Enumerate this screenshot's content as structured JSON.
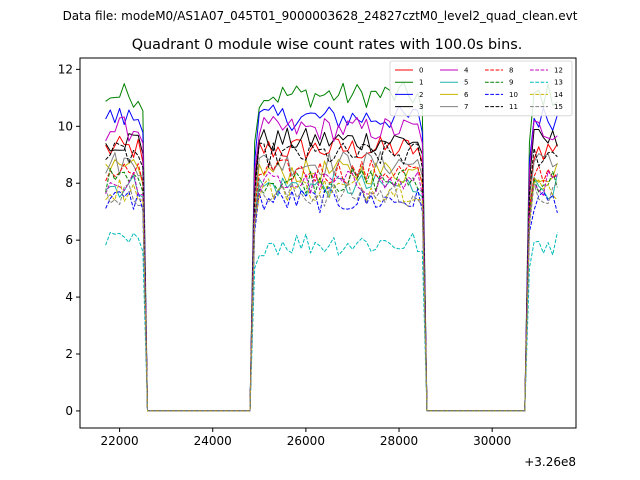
{
  "figure": {
    "suptitle": "Data file: modeM0/AS1A07_045T01_9000003628_24827cztM0_level2_quad_clean.evt"
  },
  "chart_data": {
    "type": "line",
    "title": "Quadrant 0 module wise count rates with 100.0s bins.",
    "xlabel": "",
    "ylabel": "",
    "x_offset_label": "+3.26e8",
    "x_offset": 326000000,
    "xlim": [
      21150,
      31800
    ],
    "ylim": [
      -0.6,
      12.4
    ],
    "x_ticks": [
      22000,
      24000,
      26000,
      28000,
      30000
    ],
    "y_ticks": [
      0,
      2,
      4,
      6,
      8,
      10,
      12
    ],
    "grid": false,
    "legend": {
      "placement": "top-right",
      "columns": 4
    },
    "series": [
      {
        "name": "0",
        "color": "#ff0000",
        "dash": "solid",
        "level": 9.2
      },
      {
        "name": "1",
        "color": "#008000",
        "dash": "solid",
        "level": 11.1
      },
      {
        "name": "2",
        "color": "#0000ff",
        "dash": "solid",
        "level": 10.3
      },
      {
        "name": "3",
        "color": "#000000",
        "dash": "solid",
        "level": 9.5
      },
      {
        "name": "4",
        "color": "#c000c0",
        "dash": "solid",
        "level": 9.9
      },
      {
        "name": "5",
        "color": "#20b2aa",
        "dash": "solid",
        "level": 7.9
      },
      {
        "name": "6",
        "color": "#c8b400",
        "dash": "solid",
        "level": 8.4
      },
      {
        "name": "7",
        "color": "#808080",
        "dash": "solid",
        "level": 8.7
      },
      {
        "name": "8",
        "color": "#ff0000",
        "dash": "dashed",
        "level": 8.4
      },
      {
        "name": "9",
        "color": "#008000",
        "dash": "dashed",
        "level": 8.1
      },
      {
        "name": "10",
        "color": "#0000ff",
        "dash": "dashed",
        "level": 7.4
      },
      {
        "name": "11",
        "color": "#000000",
        "dash": "dashed",
        "level": 9.0
      },
      {
        "name": "12",
        "color": "#c000c0",
        "dash": "dashed",
        "level": 8.0
      },
      {
        "name": "13",
        "color": "#00bcbc",
        "dash": "dashed",
        "level": 5.9
      },
      {
        "name": "14",
        "color": "#c8b400",
        "dash": "dashed",
        "level": 7.8
      },
      {
        "name": "15",
        "color": "#808080",
        "dash": "dashed",
        "level": 7.6
      }
    ],
    "segments": [
      {
        "start": 21700,
        "end": 22500,
        "step": 100
      },
      {
        "start": 22600,
        "end": 24800,
        "step": 100,
        "value": 0
      },
      {
        "start": 24900,
        "end": 28500,
        "step": 100
      },
      {
        "start": 28600,
        "end": 30700,
        "step": 100,
        "value": 0
      },
      {
        "start": 30800,
        "end": 31400,
        "step": 100
      }
    ]
  }
}
